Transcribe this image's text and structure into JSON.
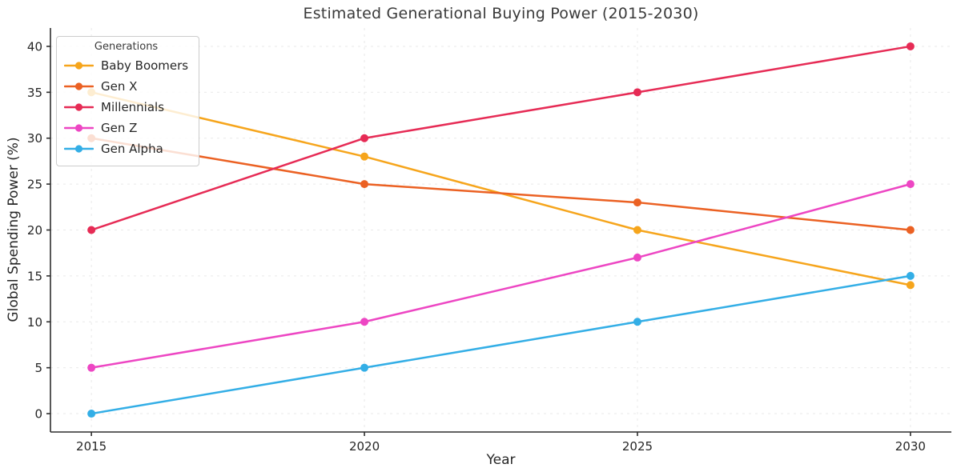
{
  "chart_data": {
    "type": "line",
    "title": "Estimated Generational Buying Power (2015-2030)",
    "xlabel": "Year",
    "ylabel": "Global Spending Power (%)",
    "x": [
      2015,
      2020,
      2025,
      2030
    ],
    "x_tick_labels": [
      "2015",
      "2020",
      "2025",
      "2030"
    ],
    "y_ticks": [
      0,
      5,
      10,
      15,
      20,
      25,
      30,
      35,
      40
    ],
    "xlim": [
      2014.25,
      2030.75
    ],
    "ylim": [
      -2,
      42
    ],
    "grid": true,
    "legend_title": "Generations",
    "legend_position": "upper left",
    "series": [
      {
        "name": "Baby Boomers",
        "color": "#F6A51C",
        "values": [
          35,
          28,
          20,
          14
        ]
      },
      {
        "name": "Gen X",
        "color": "#EB6123",
        "values": [
          30,
          25,
          23,
          20
        ]
      },
      {
        "name": "Millennials",
        "color": "#E62B55",
        "values": [
          20,
          30,
          35,
          40
        ]
      },
      {
        "name": "Gen Z",
        "color": "#ED46C3",
        "values": [
          5,
          10,
          17,
          25
        ]
      },
      {
        "name": "Gen Alpha",
        "color": "#33AEE6",
        "values": [
          0,
          5,
          10,
          15
        ]
      }
    ]
  },
  "colors": {
    "background": "#ffffff",
    "title_text": "#3a3a3a",
    "axis_text": "#262626",
    "spine": "#2e2e2e",
    "grid": "#e9e9e9",
    "legend_border": "#cccccc"
  }
}
